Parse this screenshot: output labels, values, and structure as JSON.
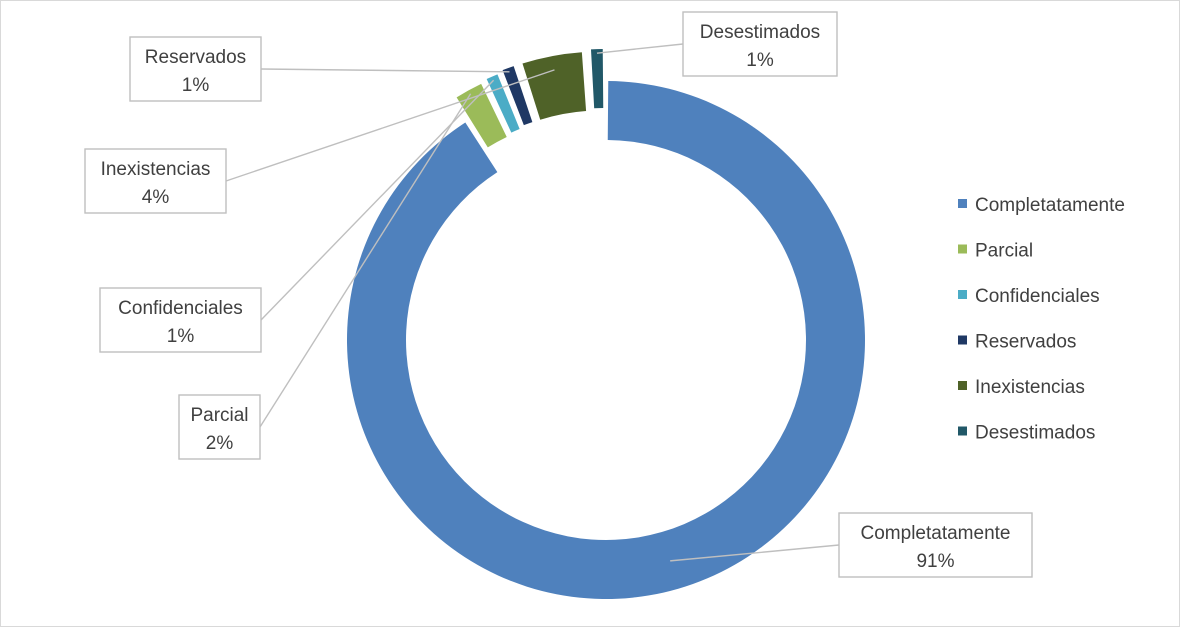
{
  "chart_data": {
    "type": "pie",
    "variant": "donut",
    "categories": [
      "Completatamente",
      "Parcial",
      "Confidenciales",
      "Reservados",
      "Inexistencias",
      "Desestimados"
    ],
    "values": [
      91,
      2,
      1,
      1,
      4,
      1
    ],
    "value_labels": [
      "91%",
      "2%",
      "1%",
      "1%",
      "4%",
      "1%"
    ],
    "colors": [
      "#4f81bd",
      "#9bbb59",
      "#4bacc6",
      "#1f3864",
      "#4f6228",
      "#215868"
    ],
    "title": "",
    "legend_position": "right",
    "exploded": true
  }
}
